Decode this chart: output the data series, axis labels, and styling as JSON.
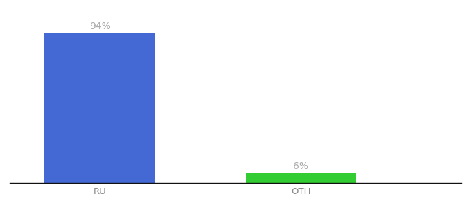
{
  "categories": [
    "RU",
    "OTH"
  ],
  "values": [
    94,
    6
  ],
  "bar_colors": [
    "#4569d4",
    "#33cc33"
  ],
  "label_texts": [
    "94%",
    "6%"
  ],
  "background_color": "#ffffff",
  "ylim": [
    0,
    108
  ],
  "bar_width": 0.55,
  "label_fontsize": 10,
  "tick_fontsize": 9.5,
  "label_color": "#aaaaaa",
  "tick_color": "#888888"
}
